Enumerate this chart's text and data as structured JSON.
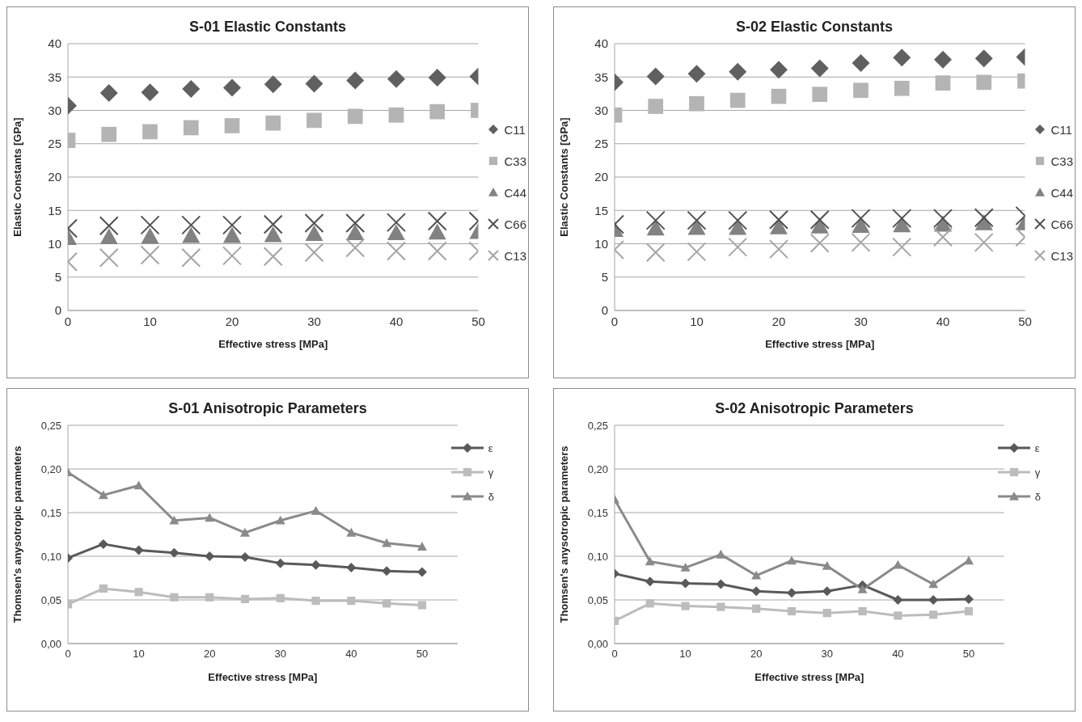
{
  "chart_data": [
    {
      "type": "scatter",
      "title": "S-01 Elastic Constants",
      "xlabel": "Effective stress [MPa]",
      "ylabel": "Elastic Constants [GPa]",
      "x": [
        0,
        5,
        10,
        15,
        20,
        25,
        30,
        35,
        40,
        45,
        50
      ],
      "xlim": [
        0,
        50
      ],
      "xticks": [
        0,
        10,
        20,
        30,
        40,
        50
      ],
      "ylim": [
        0,
        40
      ],
      "yticks": [
        0,
        5,
        10,
        15,
        20,
        25,
        30,
        35,
        40
      ],
      "grid": "y",
      "legend": "right",
      "series": [
        {
          "name": "C11",
          "color": "#606060",
          "marker": "diamond",
          "values": [
            30.7,
            32.6,
            32.7,
            33.2,
            33.4,
            33.9,
            34.0,
            34.5,
            34.7,
            34.9,
            35.1
          ]
        },
        {
          "name": "C33",
          "color": "#b4b4b4",
          "marker": "square",
          "values": [
            25.5,
            26.4,
            26.8,
            27.4,
            27.7,
            28.1,
            28.5,
            29.1,
            29.3,
            29.8,
            30.0
          ]
        },
        {
          "name": "C44",
          "color": "#828282",
          "marker": "triangle",
          "values": [
            10.9,
            11.0,
            11.1,
            11.2,
            11.2,
            11.3,
            11.5,
            11.6,
            11.6,
            11.7,
            11.8
          ]
        },
        {
          "name": "C66",
          "color": "#505050",
          "marker": "cross",
          "values": [
            12.3,
            12.7,
            12.8,
            12.8,
            12.8,
            12.9,
            13.1,
            13.1,
            13.2,
            13.4,
            13.4
          ]
        },
        {
          "name": "C13",
          "color": "#a4a4a4",
          "marker": "cross",
          "values": [
            7.3,
            7.9,
            8.3,
            7.9,
            8.2,
            8.1,
            8.7,
            9.4,
            8.9,
            8.9,
            8.9
          ]
        }
      ]
    },
    {
      "type": "scatter",
      "title": "S-02 Elastic Constants",
      "xlabel": "Effective stress [MPa]",
      "ylabel": "Elastic Constants [GPa]",
      "x": [
        0,
        5,
        10,
        15,
        20,
        25,
        30,
        35,
        40,
        45,
        50
      ],
      "xlim": [
        0,
        50
      ],
      "xticks": [
        0,
        10,
        20,
        30,
        40,
        50
      ],
      "ylim": [
        0,
        40
      ],
      "yticks": [
        0,
        5,
        10,
        15,
        20,
        25,
        30,
        35,
        40
      ],
      "grid": "y",
      "legend": "right",
      "series": [
        {
          "name": "C11",
          "color": "#606060",
          "marker": "diamond",
          "values": [
            34.2,
            35.1,
            35.5,
            35.8,
            36.1,
            36.3,
            37.1,
            37.9,
            37.6,
            37.8,
            38.0
          ]
        },
        {
          "name": "C33",
          "color": "#b4b4b4",
          "marker": "square",
          "values": [
            29.3,
            30.6,
            31.0,
            31.5,
            32.1,
            32.4,
            33.0,
            33.3,
            34.1,
            34.2,
            34.4
          ]
        },
        {
          "name": "C44",
          "color": "#828282",
          "marker": "triangle",
          "values": [
            12.1,
            12.3,
            12.4,
            12.4,
            12.5,
            12.6,
            12.7,
            12.8,
            12.9,
            13.1,
            13.1
          ]
        },
        {
          "name": "C66",
          "color": "#505050",
          "marker": "cross",
          "values": [
            12.9,
            13.5,
            13.5,
            13.5,
            13.6,
            13.6,
            13.8,
            13.8,
            13.8,
            13.9,
            14.2
          ]
        },
        {
          "name": "C13",
          "color": "#a4a4a4",
          "marker": "cross",
          "values": [
            9.1,
            8.7,
            8.8,
            9.5,
            9.2,
            10.1,
            10.2,
            9.5,
            11.0,
            10.2,
            11.0
          ]
        }
      ]
    },
    {
      "type": "line",
      "title": "S-01 Anisotropic Parameters",
      "xlabel": "Effective stress [MPa]",
      "ylabel": "Thomsen's anysotropic parameters",
      "x": [
        0,
        5,
        10,
        15,
        20,
        25,
        30,
        35,
        40,
        45,
        50
      ],
      "xlim": [
        0,
        55
      ],
      "xticks": [
        0,
        10,
        20,
        30,
        40,
        50
      ],
      "ylim": [
        0,
        0.25
      ],
      "yticks": [
        {
          "value": 0,
          "label": "0,00"
        },
        {
          "value": 0.05,
          "label": "0,05"
        },
        {
          "value": 0.1,
          "label": "0,10"
        },
        {
          "value": 0.15,
          "label": "0,15"
        },
        {
          "value": 0.2,
          "label": "0,20"
        },
        {
          "value": 0.25,
          "label": "0,25"
        }
      ],
      "grid": "y",
      "legend": "top right",
      "line_style": "solid",
      "series": [
        {
          "name": "ε",
          "color": "#595959",
          "marker": "diamond",
          "values": [
            0.098,
            0.114,
            0.107,
            0.104,
            0.1,
            0.099,
            0.092,
            0.09,
            0.087,
            0.083,
            0.082
          ]
        },
        {
          "name": "γ",
          "color": "#bcbcbc",
          "marker": "square",
          "values": [
            0.045,
            0.063,
            0.059,
            0.053,
            0.053,
            0.051,
            0.052,
            0.049,
            0.049,
            0.046,
            0.044
          ]
        },
        {
          "name": "δ",
          "color": "#8a8a8a",
          "marker": "triangle",
          "values": [
            0.196,
            0.17,
            0.181,
            0.141,
            0.144,
            0.127,
            0.141,
            0.152,
            0.127,
            0.115,
            0.111
          ]
        }
      ]
    },
    {
      "type": "line",
      "title": "S-02 Anisotropic Parameters",
      "xlabel": "Effective stress [MPa]",
      "ylabel": "Thomsen's anysotropic parameters",
      "x": [
        0,
        5,
        10,
        15,
        20,
        25,
        30,
        35,
        40,
        45,
        50
      ],
      "xlim": [
        0,
        55
      ],
      "xticks": [
        0,
        10,
        20,
        30,
        40,
        50
      ],
      "ylim": [
        0,
        0.25
      ],
      "yticks": [
        {
          "value": 0,
          "label": "0,00"
        },
        {
          "value": 0.05,
          "label": "0,05"
        },
        {
          "value": 0.1,
          "label": "0,10"
        },
        {
          "value": 0.15,
          "label": "0,15"
        },
        {
          "value": 0.2,
          "label": "0,20"
        },
        {
          "value": 0.25,
          "label": "0,25"
        }
      ],
      "grid": "y",
      "legend": "top right",
      "line_style": "solid",
      "series": [
        {
          "name": "ε",
          "color": "#595959",
          "marker": "diamond",
          "values": [
            0.08,
            0.071,
            0.069,
            0.068,
            0.06,
            0.058,
            0.06,
            0.067,
            0.05,
            0.05,
            0.051
          ]
        },
        {
          "name": "γ",
          "color": "#bcbcbc",
          "marker": "square",
          "values": [
            0.026,
            0.046,
            0.043,
            0.042,
            0.04,
            0.037,
            0.035,
            0.037,
            0.032,
            0.033,
            0.037
          ]
        },
        {
          "name": "δ",
          "color": "#8a8a8a",
          "marker": "triangle",
          "values": [
            0.165,
            0.094,
            0.087,
            0.102,
            0.078,
            0.095,
            0.089,
            0.062,
            0.09,
            0.068,
            0.095
          ]
        }
      ]
    }
  ]
}
